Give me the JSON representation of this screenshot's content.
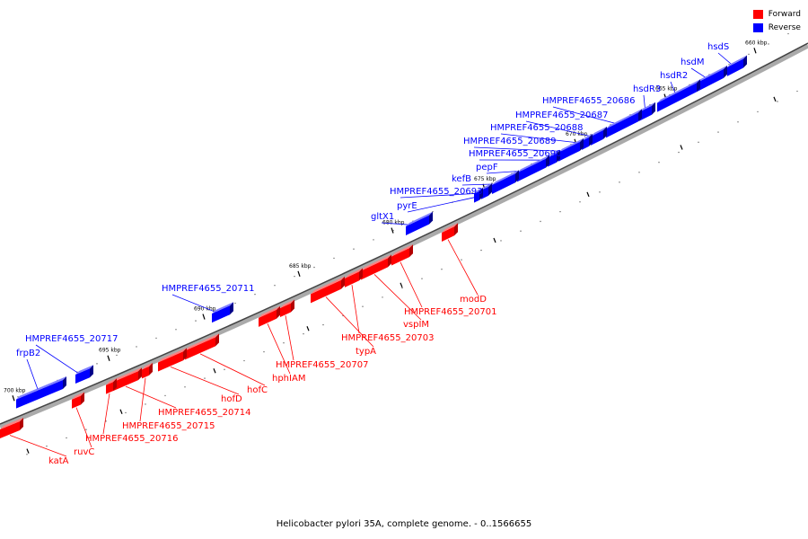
{
  "legend": {
    "forward_label": "Forward",
    "reverse_label": "Reverse",
    "forward_color": "#ff0000",
    "reverse_color": "#0000ff"
  },
  "caption": "Helicobacter pylori 35A, complete genome. - 0..1566655",
  "scale_labels": [
    "660 kbp",
    "665 kbp",
    "670 kbp",
    "675 kbp",
    "680 kbp",
    "685 kbp",
    "690 kbp",
    "695 kbp",
    "700 kbp"
  ],
  "reverse_genes": [
    "hsdS",
    "hsdM",
    "hsdR2",
    "hsdR3",
    "HMPREF4655_20686",
    "HMPREF4655_20687",
    "HMPREF4655_20688",
    "HMPREF4655_20689",
    "HMPREF4655_20690",
    "pepF",
    "kefB",
    "HMPREF4655_20693",
    "pyrE",
    "gltX1",
    "HMPREF4655_20711",
    "HMPREF4655_20717",
    "frpB2"
  ],
  "forward_genes": [
    "modD",
    "HMPREF4655_20701",
    "vspIM",
    "HMPREF4655_20703",
    "typA",
    "HMPREF4655_20707",
    "hphIAM",
    "hofC",
    "hofD",
    "HMPREF4655_20714",
    "HMPREF4655_20715",
    "HMPREF4655_20716",
    "ruvC",
    "katA"
  ]
}
